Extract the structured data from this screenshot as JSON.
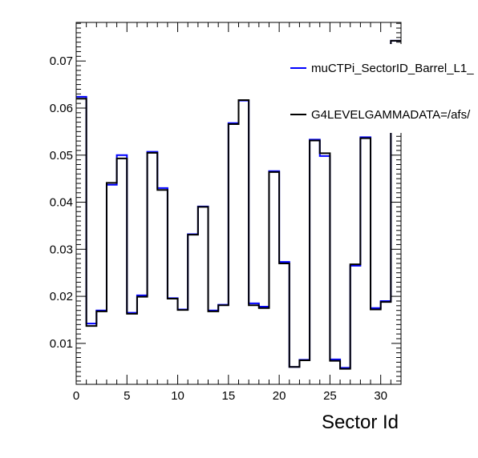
{
  "chart_data": {
    "type": "line",
    "title": "",
    "xlabel": "Sector Id",
    "ylabel": "",
    "xlim": [
      0,
      32
    ],
    "ylim": [
      0.0013,
      0.0782
    ],
    "x_ticks": [
      "0",
      "5",
      "10",
      "15",
      "20",
      "25",
      "30"
    ],
    "y_ticks": [
      "0.01",
      "0.02",
      "0.03",
      "0.04",
      "0.05",
      "0.06",
      "0.07"
    ],
    "bin_edges": [
      0,
      1,
      2,
      3,
      4,
      5,
      6,
      7,
      8,
      9,
      10,
      11,
      12,
      13,
      14,
      15,
      16,
      17,
      18,
      19,
      20,
      21,
      22,
      23,
      24,
      25,
      26,
      27,
      28,
      29,
      30,
      31,
      32
    ],
    "grid": false,
    "legend_position": "top-right",
    "series": [
      {
        "name": "muCTPi_SectorID_Barrel_L1_",
        "color": "#0000ff",
        "values": [
          0.0624,
          0.0142,
          0.017,
          0.0437,
          0.05,
          0.0165,
          0.0202,
          0.0507,
          0.043,
          0.0196,
          0.0172,
          0.0332,
          0.0391,
          0.017,
          0.0182,
          0.0568,
          0.0616,
          0.0185,
          0.0178,
          0.0466,
          0.0273,
          0.005,
          0.0065,
          0.0533,
          0.0498,
          0.0066,
          0.0048,
          0.0265,
          0.0538,
          0.0175,
          0.019,
          0.0743
        ]
      },
      {
        "name": "G4LEVELGAMMADATA=/afs/",
        "color": "#000000",
        "values": [
          0.062,
          0.0137,
          0.0168,
          0.0441,
          0.0493,
          0.0163,
          0.0199,
          0.0505,
          0.0426,
          0.0195,
          0.0171,
          0.0331,
          0.039,
          0.0168,
          0.0181,
          0.0566,
          0.0617,
          0.0181,
          0.0175,
          0.0464,
          0.027,
          0.005,
          0.0064,
          0.0531,
          0.0504,
          0.0063,
          0.0046,
          0.0268,
          0.0536,
          0.0172,
          0.0188,
          0.0743
        ]
      }
    ]
  }
}
